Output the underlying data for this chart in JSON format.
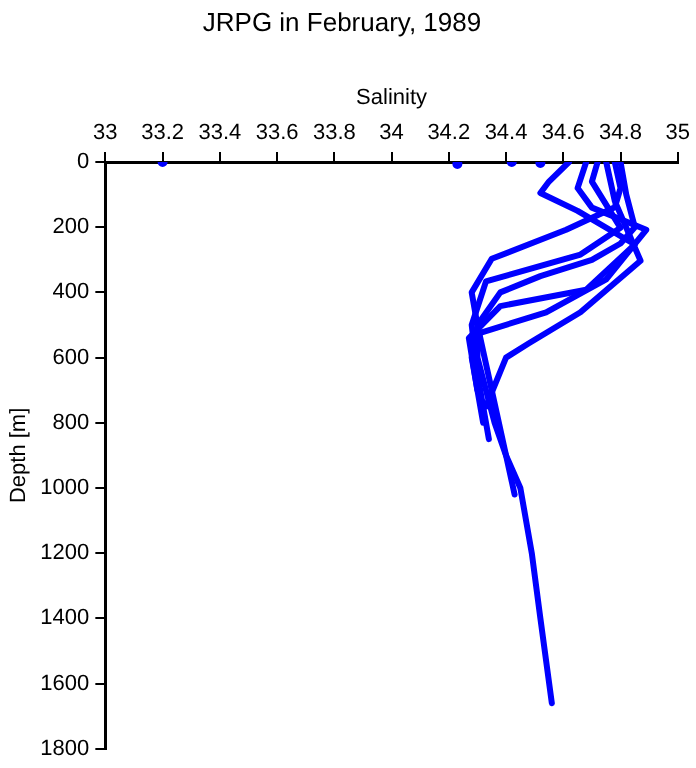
{
  "chart_data": {
    "type": "line",
    "title": "JRPG in February, 1989",
    "xlabel": "Salinity",
    "ylabel": "Depth [m]",
    "xlim": [
      33,
      35
    ],
    "xticks": [
      33,
      33.2,
      33.4,
      33.6,
      33.8,
      34,
      34.2,
      34.4,
      34.6,
      34.8,
      35
    ],
    "ylim": [
      1800,
      0
    ],
    "yticks": [
      0,
      200,
      400,
      600,
      800,
      1000,
      1200,
      1400,
      1600,
      1800
    ],
    "grid": false,
    "legend": false,
    "series": [
      {
        "color": "#0000ff",
        "x": [
          34.8,
          34.82,
          34.85,
          34.8,
          34.7,
          34.52,
          34.38,
          34.3,
          34.3,
          34.33,
          34.36,
          34.4,
          34.45,
          34.49,
          34.52,
          34.56
        ],
        "values": [
          0,
          100,
          200,
          250,
          300,
          350,
          400,
          500,
          600,
          700,
          800,
          900,
          1000,
          1200,
          1400,
          1660
        ]
      },
      {
        "color": "#0000ff",
        "x": [
          34.78,
          34.8,
          34.78,
          34.61,
          34.35,
          34.28,
          34.3,
          34.35,
          34.4,
          34.43
        ],
        "values": [
          0,
          80,
          139,
          208,
          297,
          400,
          500,
          700,
          900,
          1020
        ]
      },
      {
        "color": "#0000ff",
        "x": [
          34.72,
          34.7,
          34.8,
          34.66,
          34.33,
          34.28,
          34.3,
          34.34
        ],
        "values": [
          0,
          60,
          202,
          284,
          366,
          500,
          650,
          850
        ]
      },
      {
        "color": "#0000ff",
        "x": [
          34.62,
          34.55,
          34.52,
          34.65,
          34.85,
          34.68,
          34.38,
          34.27,
          34.3
        ],
        "values": [
          0,
          60,
          95,
          150,
          253,
          392,
          442,
          540,
          700
        ]
      },
      {
        "color": "#0000ff",
        "x": [
          34.68,
          34.65,
          34.7,
          34.89,
          34.75,
          34.54,
          34.31,
          34.28,
          34.32
        ],
        "values": [
          0,
          80,
          140,
          208,
          360,
          461,
          524,
          600,
          800
        ]
      },
      {
        "color": "#0000ff",
        "x": [
          34.75,
          34.78,
          34.87,
          34.66,
          34.48,
          34.4,
          34.33
        ],
        "values": [
          0,
          120,
          303,
          461,
          556,
          600,
          750
        ]
      },
      {
        "type": "scatter",
        "color": "#0000ff",
        "x": [
          33.2,
          34.23,
          34.42,
          34.52
        ],
        "values": [
          0,
          6,
          0,
          3
        ]
      }
    ]
  }
}
